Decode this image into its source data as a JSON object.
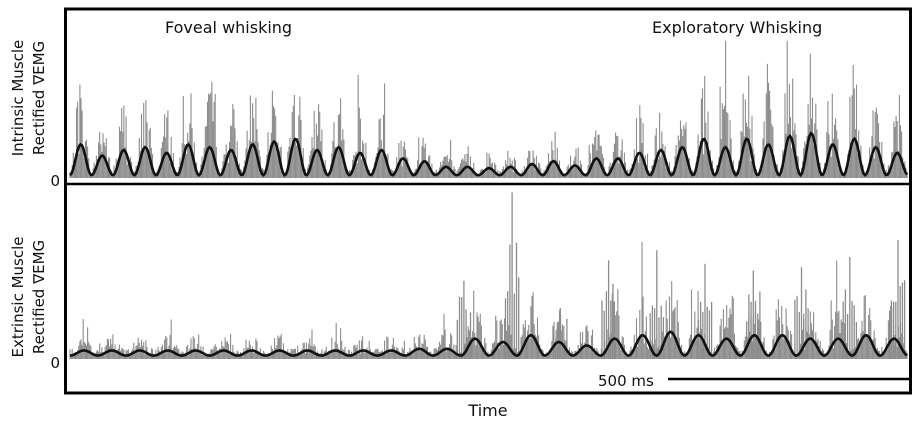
{
  "chart_data": [
    {
      "type": "line",
      "panel": "top",
      "ylabel_line1": "Intrinsic Muscle",
      "ylabel_line2": "Rectified ∇EMG",
      "y_zero_label": "0",
      "annotations": [
        "Foveal whisking",
        "Exploratory Whisking"
      ],
      "series": [
        {
          "role": "rectified EMG",
          "color": "#8c8c8c"
        },
        {
          "role": "smoothed envelope",
          "color": "#111111"
        }
      ],
      "ylim": [
        0,
        1
      ],
      "envelope_peaks": [
        0.22,
        0.14,
        0.18,
        0.2,
        0.16,
        0.22,
        0.2,
        0.18,
        0.22,
        0.24,
        0.26,
        0.18,
        0.2,
        0.16,
        0.18,
        0.12,
        0.1,
        0.06,
        0.06,
        0.05,
        0.06,
        0.08,
        0.1,
        0.07,
        0.12,
        0.12,
        0.16,
        0.18,
        0.2,
        0.26,
        0.2,
        0.26,
        0.22,
        0.28,
        0.3,
        0.22,
        0.26,
        0.2,
        0.16
      ]
    },
    {
      "type": "line",
      "panel": "bottom",
      "ylabel_line1": "Extrinsic Muscle",
      "ylabel_line2": "Rectified ∇EMG",
      "y_zero_label": "0",
      "series": [
        {
          "role": "rectified EMG",
          "color": "#8c8c8c"
        },
        {
          "role": "smoothed envelope",
          "color": "#111111"
        }
      ],
      "ylim": [
        0,
        1
      ],
      "envelope_peaks": [
        0.03,
        0.03,
        0.03,
        0.03,
        0.03,
        0.03,
        0.03,
        0.03,
        0.03,
        0.03,
        0.03,
        0.03,
        0.04,
        0.04,
        0.1,
        0.08,
        0.12,
        0.08,
        0.06,
        0.1,
        0.12,
        0.14,
        0.12,
        0.1,
        0.12,
        0.12,
        0.1,
        0.1,
        0.12,
        0.1
      ],
      "burst_peaks": [
        0.46,
        0.98,
        0.3,
        0.58,
        0.64,
        0.56,
        0.52,
        0.54,
        0.6,
        0.7
      ]
    }
  ],
  "scale_bar_label": "500 ms",
  "xlabel": "Time",
  "colors": {
    "trace": "#8c8c8c",
    "envelope": "#111111",
    "frame": "#000000"
  }
}
